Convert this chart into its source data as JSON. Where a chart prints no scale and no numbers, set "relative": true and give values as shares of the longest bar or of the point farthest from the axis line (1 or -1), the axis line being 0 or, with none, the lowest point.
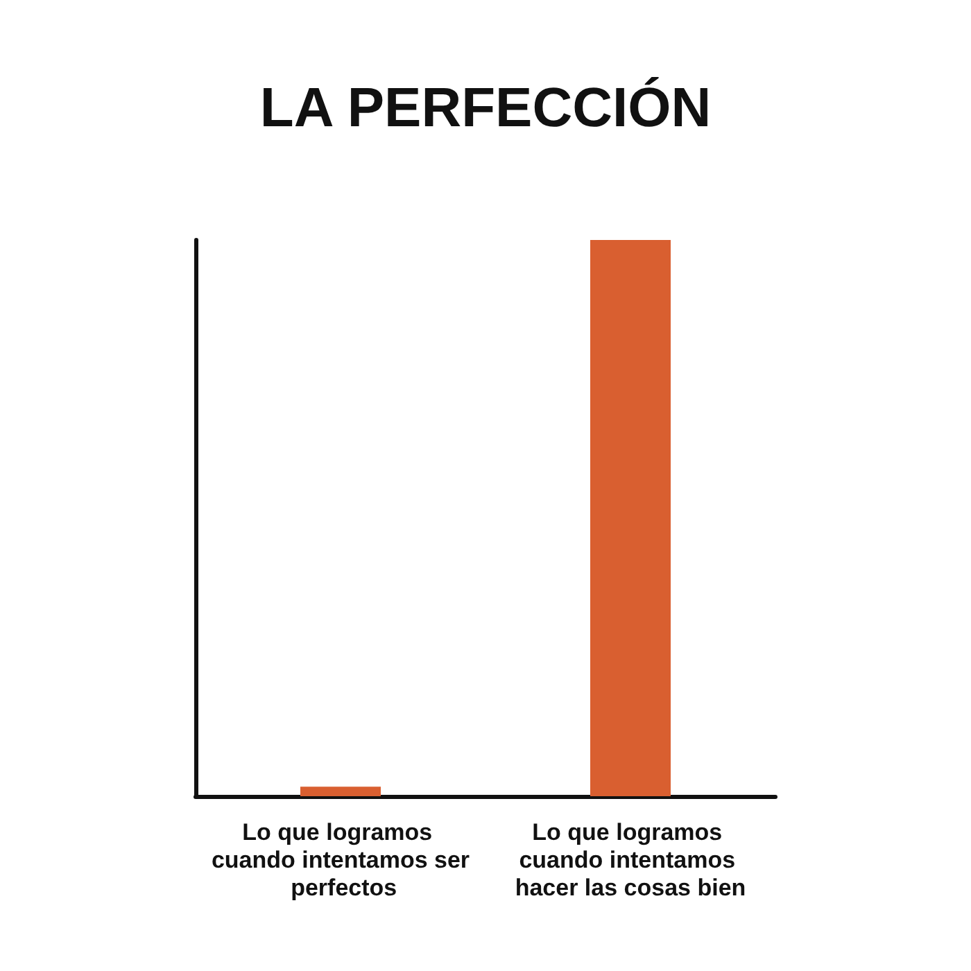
{
  "chart_data": {
    "type": "bar",
    "title": "LA PERFECCIÓN",
    "relative": true,
    "categories": [
      "Lo que logramos cuando intentamos ser perfectos",
      "Lo que logramos cuando intentamos hacer las cosas bien"
    ],
    "values": [
      0.017,
      1
    ],
    "color": "#d95f30"
  }
}
